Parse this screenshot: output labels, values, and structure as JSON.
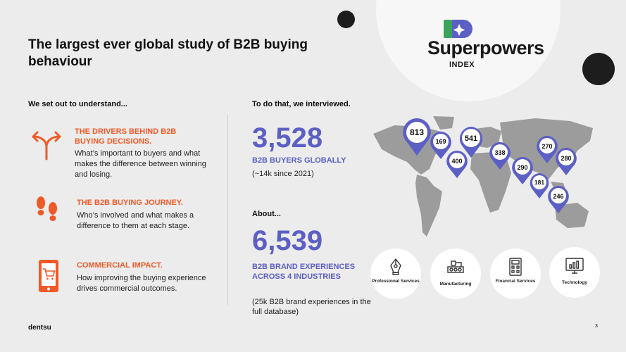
{
  "title": "The largest ever global study of B2B buying behaviour",
  "logo": {
    "name": "Superpowers",
    "sub": "INDEX"
  },
  "left": {
    "heading": "We set out to understand...",
    "items": [
      {
        "icon": "split-arrow-icon",
        "title": "THE DRIVERS BEHIND B2B BUYING DECISIONS.",
        "body": "What’s important to buyers and what makes the difference between winning and losing."
      },
      {
        "icon": "footprints-icon",
        "title": "THE B2B BUYING JOURNEY.",
        "body": "Who’s involved and what makes a difference to them at each stage."
      },
      {
        "icon": "mobile-cart-icon",
        "title": "COMMERCIAL IMPACT.",
        "body": "How improving the buying experience drives commercial outcomes."
      }
    ]
  },
  "middle": {
    "heading": "To do that, we interviewed.",
    "stat1": {
      "value": "3,528",
      "label": "B2B BUYERS GLOBALLY",
      "note": "(~14k since 2021)"
    },
    "about": "About...",
    "stat2": {
      "value": "6,539",
      "label": "B2B BRAND EXPERIENCES ACROSS 4 INDUSTRIES",
      "note": "(25k B2B brand experiences in the full database)"
    }
  },
  "map_pins": [
    {
      "label": "813"
    },
    {
      "label": "169"
    },
    {
      "label": "541"
    },
    {
      "label": "400"
    },
    {
      "label": "338"
    },
    {
      "label": "270"
    },
    {
      "label": "280"
    },
    {
      "label": "290"
    },
    {
      "label": "181"
    },
    {
      "label": "246"
    }
  ],
  "industries": [
    {
      "icon": "pen-nib-icon",
      "label": "Professional Services"
    },
    {
      "icon": "factory-icon",
      "label": "Manufacturing"
    },
    {
      "icon": "calculator-icon",
      "label": "Financial Services"
    },
    {
      "icon": "chart-monitor-icon",
      "label": "Technology"
    }
  ],
  "footer": {
    "brand": "dentsu",
    "page": "3"
  },
  "colors": {
    "accent": "#f05a28",
    "primary": "#5c5fc4",
    "background": "#ececec"
  }
}
